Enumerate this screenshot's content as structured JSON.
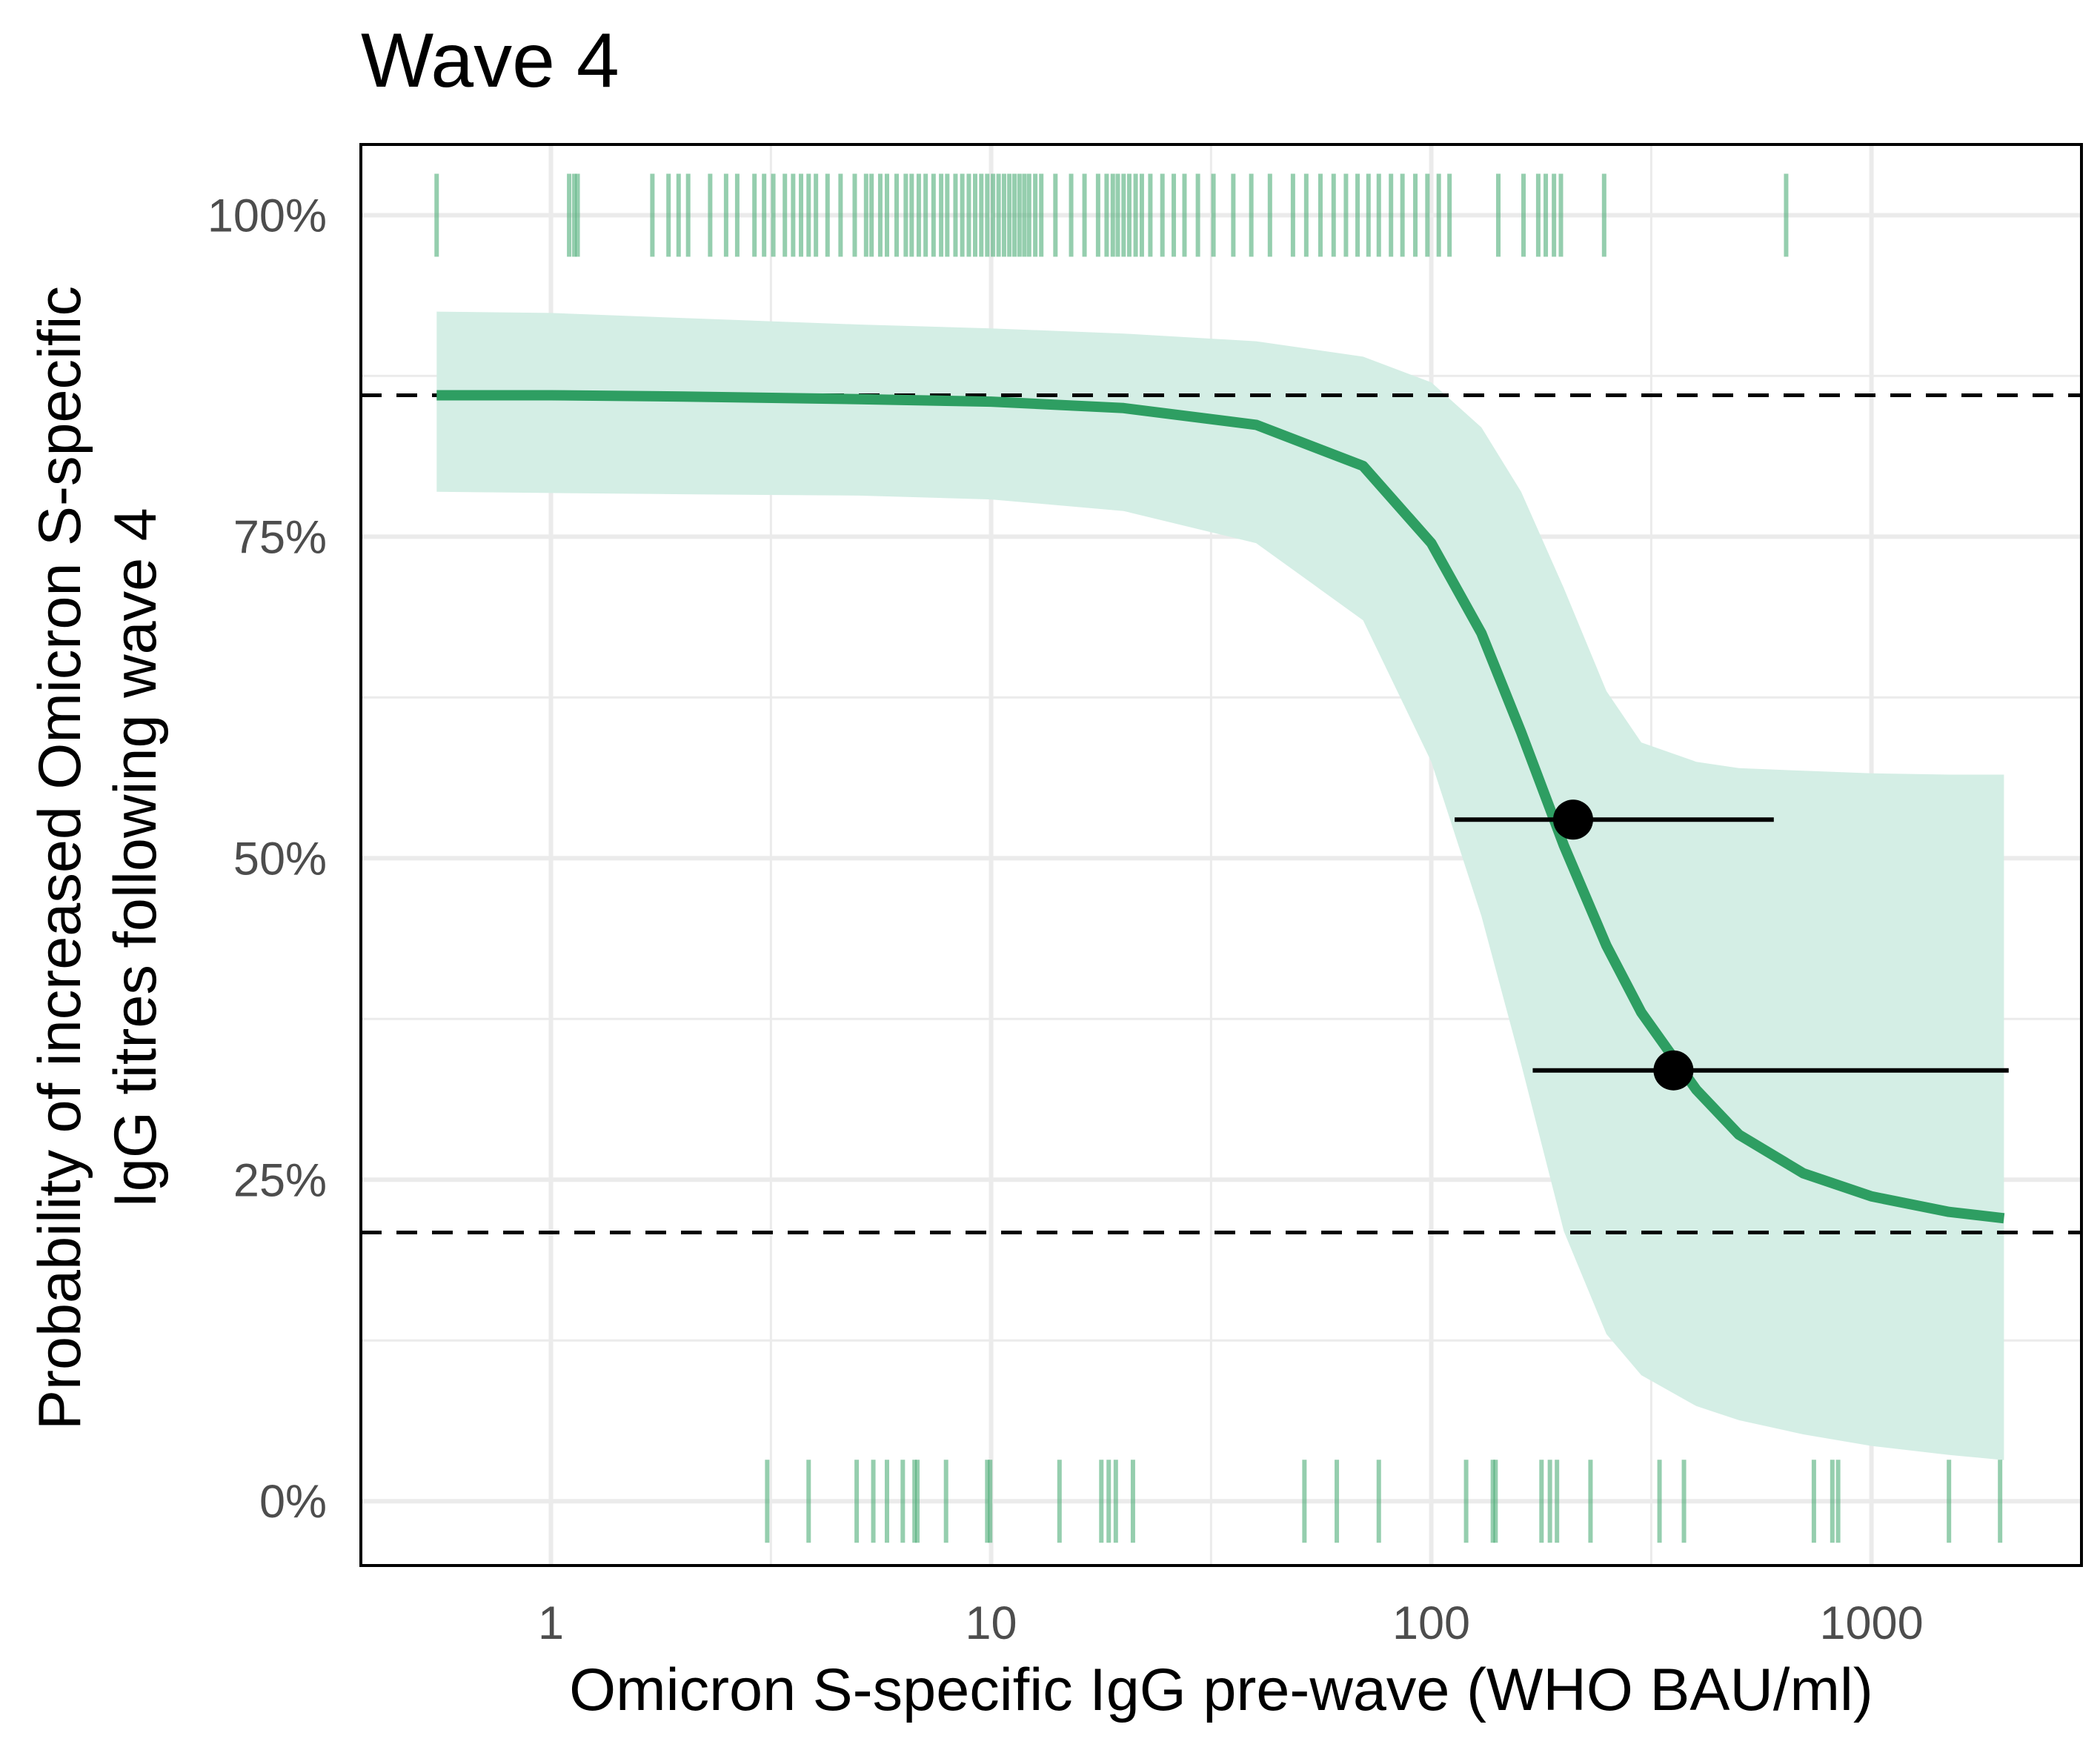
{
  "chart_data": {
    "type": "line",
    "title": "Wave 4",
    "xlabel": "Omicron S-specific IgG pre-wave (WHO BAU/ml)",
    "ylabel_lines": [
      "Probability of increased Omicron S-specific",
      "IgG titres following wave 4"
    ],
    "x_scale": "log10",
    "xlim": [
      0.37,
      3000
    ],
    "ylim": [
      -0.05,
      1.055
    ],
    "x_ticks": [
      {
        "value": 1,
        "label": "1"
      },
      {
        "value": 10,
        "label": "10"
      },
      {
        "value": 100,
        "label": "100"
      },
      {
        "value": 1000,
        "label": "1000"
      }
    ],
    "x_minor_ticks": [
      0.316,
      3.16,
      31.6,
      316
    ],
    "y_ticks": [
      {
        "value": 0,
        "label": "0%"
      },
      {
        "value": 0.25,
        "label": "25%"
      },
      {
        "value": 0.5,
        "label": "50%"
      },
      {
        "value": 0.75,
        "label": "75%"
      },
      {
        "value": 1,
        "label": "100%"
      }
    ],
    "y_minor_ticks": [
      0.125,
      0.375,
      0.625,
      0.875
    ],
    "grid": true,
    "colors": {
      "curve": "#2e9e62",
      "ribbon": "#d4eee5",
      "rug": "#4fae78",
      "points": "#000000",
      "reference_lines": "#000000",
      "grid": "#ebebeb"
    },
    "reference_lines": [
      0.86,
      0.209
    ],
    "curve": {
      "x": [
        0.55,
        1,
        2,
        5,
        10,
        20,
        40,
        70,
        100,
        130,
        160,
        200,
        250,
        300,
        400,
        500,
        700,
        1000,
        1500,
        2000
      ],
      "y": [
        0.86,
        0.86,
        0.859,
        0.857,
        0.855,
        0.85,
        0.837,
        0.805,
        0.745,
        0.675,
        0.598,
        0.51,
        0.432,
        0.38,
        0.32,
        0.285,
        0.255,
        0.237,
        0.225,
        0.22
      ]
    },
    "ribbon": {
      "x": [
        0.55,
        1,
        2,
        5,
        10,
        20,
        40,
        70,
        100,
        130,
        160,
        200,
        250,
        300,
        400,
        500,
        700,
        1000,
        1500,
        2000
      ],
      "lower": [
        0.785,
        0.784,
        0.783,
        0.782,
        0.779,
        0.77,
        0.745,
        0.685,
        0.575,
        0.455,
        0.34,
        0.21,
        0.13,
        0.098,
        0.074,
        0.063,
        0.052,
        0.043,
        0.036,
        0.032
      ],
      "upper": [
        0.925,
        0.924,
        0.92,
        0.915,
        0.912,
        0.908,
        0.902,
        0.89,
        0.87,
        0.835,
        0.785,
        0.71,
        0.63,
        0.59,
        0.575,
        0.57,
        0.568,
        0.566,
        0.565,
        0.565
      ]
    },
    "points": [
      {
        "x": 210,
        "y": 0.53,
        "x_low": 113,
        "x_high": 600
      },
      {
        "x": 355,
        "y": 0.335,
        "x_low": 170,
        "x_high": 2050
      }
    ],
    "rug_top": [
      0.55,
      1.1,
      1.13,
      1.15,
      1.7,
      1.85,
      1.95,
      2.05,
      2.3,
      2.5,
      2.65,
      2.9,
      3.05,
      3.2,
      3.4,
      3.55,
      3.7,
      3.85,
      4.0,
      4.25,
      4.55,
      4.9,
      5.2,
      5.35,
      5.6,
      5.8,
      6.1,
      6.4,
      6.6,
      6.85,
      7.1,
      7.4,
      7.7,
      7.95,
      8.3,
      8.6,
      8.9,
      9.2,
      9.5,
      9.8,
      10.1,
      10.4,
      10.7,
      11.0,
      11.3,
      11.6,
      11.9,
      12.2,
      12.6,
      13.0,
      14.0,
      15.2,
      16.3,
      17.5,
      18.3,
      18.9,
      19.4,
      20.0,
      20.6,
      21.3,
      22.0,
      23.0,
      24.5,
      26.0,
      27.5,
      29.5,
      32.0,
      35.5,
      39.0,
      43.0,
      48.5,
      52.0,
      56.0,
      60.0,
      64.0,
      68.0,
      72.0,
      76.0,
      81.0,
      86.0,
      92.0,
      98.0,
      104.0,
      110.0,
      142.0,
      162.0,
      175.0,
      182.0,
      190.0,
      197.0,
      247.0,
      640.0
    ],
    "rug_bottom": [
      3.1,
      3.85,
      4.95,
      5.4,
      5.8,
      6.3,
      6.7,
      6.8,
      7.9,
      9.8,
      9.95,
      14.3,
      17.8,
      18.5,
      19.2,
      21.0,
      51.5,
      61.0,
      76.0,
      120.0,
      138.0,
      140.0,
      178.0,
      186.0,
      193.0,
      230.0,
      330.0,
      375.0,
      740.0,
      815.0,
      840.0,
      1500.0,
      1960.0
    ]
  }
}
